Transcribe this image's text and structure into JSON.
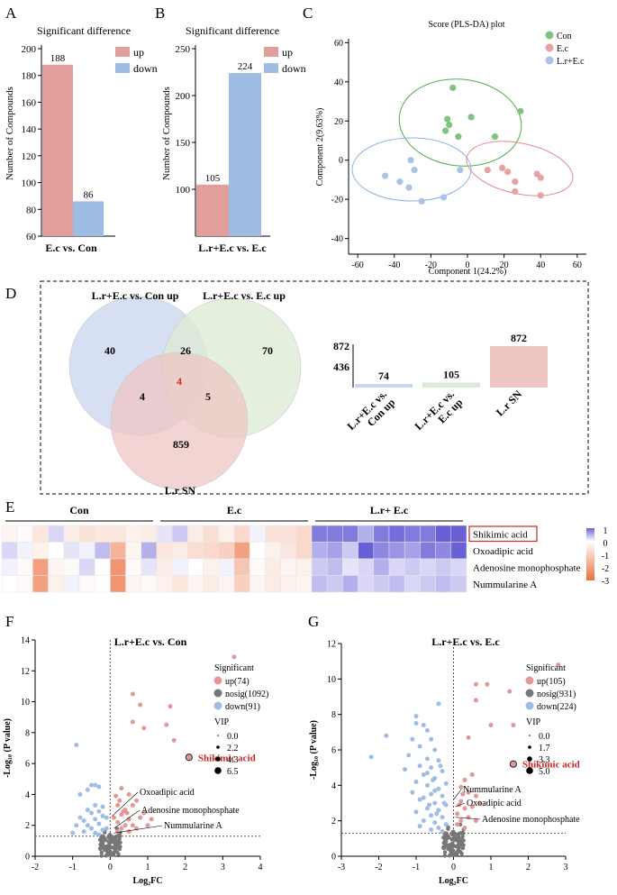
{
  "panels": {
    "A": {
      "label": "A",
      "title": "Significant difference",
      "ylabel": "Number of Compounds",
      "xlabel": "E.c vs. Con"
    },
    "B": {
      "label": "B",
      "title": "Significant difference",
      "ylabel": "Number of Compounds",
      "xlabel": "L.r+E.c vs. E.c"
    },
    "C": {
      "label": "C"
    },
    "D": {
      "label": "D"
    },
    "E": {
      "label": "E"
    },
    "F": {
      "label": "F"
    },
    "G": {
      "label": "G"
    }
  },
  "venn": {
    "sets": [
      "L.r+E.c vs. Con up",
      "L.r+E.c vs. E.c up",
      "L.r SN"
    ],
    "regions": {
      "a_only": "40",
      "ab": "26",
      "b_only": "70",
      "abc": "4",
      "ac": "4",
      "bc": "5",
      "c_only": "859"
    },
    "colors": [
      "#c9d6ef",
      "#dcebd3",
      "#eec5c3"
    ]
  },
  "heatmap": {
    "groups": [
      "Con",
      "E.c",
      "L.r+ E.c"
    ],
    "rows": [
      "Shikimic acid",
      "Oxoadipic acid",
      "Adenosine monophosphate",
      "Nummularine A"
    ],
    "highlight_row": "Shikimic acid",
    "scale_ticks": [
      "1",
      "0",
      "-1",
      "-2",
      "-3"
    ],
    "values": [
      [
        -0.2,
        -0.1,
        -0.5,
        0.3,
        -0.4,
        -0.6,
        -0.5,
        -0.5,
        -0.3,
        -0.4,
        0.2,
        0.4,
        -0.4,
        -0.7,
        -0.3,
        -0.8,
        0.1,
        -0.6,
        -0.6,
        -0.8,
        1.0,
        1.0,
        1.0,
        0.6,
        1.0,
        1.1,
        1.0,
        1.0,
        1.2,
        1.2
      ],
      [
        0.3,
        0.1,
        -0.3,
        0.0,
        0.2,
        0.1,
        0.5,
        -1.6,
        -0.2,
        0.6,
        -0.5,
        -0.4,
        -0.7,
        -0.8,
        -1.0,
        -2.0,
        0.0,
        -0.3,
        -0.5,
        -0.8,
        0.6,
        0.7,
        0.4,
        2.0,
        0.9,
        0.8,
        0.7,
        1.0,
        0.9,
        1.2
      ],
      [
        0.1,
        -0.1,
        -2.0,
        -0.2,
        -0.1,
        0.3,
        0.0,
        -2.2,
        -0.1,
        0.2,
        -0.4,
        0.1,
        0.0,
        -0.3,
        0.1,
        -1.2,
        -0.1,
        -0.4,
        -0.2,
        -0.3,
        0.4,
        0.5,
        0.2,
        0.3,
        0.6,
        0.3,
        0.4,
        0.3,
        0.4,
        0.3
      ],
      [
        0.0,
        -0.1,
        -2.0,
        -0.3,
        0.1,
        -0.1,
        0.0,
        -2.2,
        -0.2,
        -0.1,
        -0.3,
        -0.5,
        -0.2,
        -0.4,
        -0.2,
        -1.0,
        -0.2,
        -0.4,
        -0.3,
        -0.2,
        0.5,
        0.4,
        0.6,
        0.3,
        0.4,
        0.5,
        0.3,
        0.4,
        0.5,
        0.4
      ]
    ]
  },
  "chart_data": [
    {
      "id": "A",
      "type": "bar",
      "title": "Significant difference",
      "categories": [
        "E.c vs. Con"
      ],
      "series": [
        {
          "name": "up",
          "values": [
            188
          ],
          "color": "#e29e9a"
        },
        {
          "name": "down",
          "values": [
            86
          ],
          "color": "#9fbde3"
        }
      ],
      "xlabel": "E.c vs. Con",
      "ylabel": "Number of Compounds",
      "ylim": [
        60,
        200
      ],
      "yticks": [
        "60",
        "80",
        "100",
        "120",
        "140",
        "160",
        "180",
        "200"
      ],
      "data_labels": [
        "188",
        "86"
      ],
      "legend": [
        "up",
        "down"
      ]
    },
    {
      "id": "B",
      "type": "bar",
      "title": "Significant difference",
      "categories": [
        "L.r+E.c vs. E.c"
      ],
      "series": [
        {
          "name": "up",
          "values": [
            105
          ],
          "color": "#e29e9a"
        },
        {
          "name": "down",
          "values": [
            224
          ],
          "color": "#9fbde3"
        }
      ],
      "xlabel": "L.r+E.c vs. E.c",
      "ylabel": "Number of Compounds",
      "ylim": [
        50,
        250
      ],
      "yticks": [
        "100",
        "150",
        "200",
        "250"
      ],
      "data_labels": [
        "105",
        "224"
      ],
      "legend": [
        "up",
        "down"
      ]
    },
    {
      "id": "C",
      "type": "scatter",
      "title": "Score (PLS-DA) plot",
      "xlabel": "Component 1(24.2%)",
      "ylabel": "Component 2(9.63%)",
      "xlim": [
        -65,
        65
      ],
      "ylim": [
        -48,
        62
      ],
      "xticks": [
        "-60",
        "-40",
        "-20",
        "0",
        "20",
        "40",
        "60"
      ],
      "yticks": [
        "-40",
        "-20",
        "0",
        "20",
        "40",
        "60"
      ],
      "series": [
        {
          "name": "Con",
          "color": "#7fc47e",
          "points": [
            [
              -8,
              37
            ],
            [
              -11,
              21
            ],
            [
              -10,
              18
            ],
            [
              -12,
              15
            ],
            [
              -5,
              12
            ],
            [
              2,
              22
            ],
            [
              15,
              12
            ],
            [
              29,
              25
            ]
          ]
        },
        {
          "name": "E.c",
          "color": "#e6a3a3",
          "points": [
            [
              11,
              -5
            ],
            [
              19,
              -4
            ],
            [
              22,
              -6
            ],
            [
              26,
              -11
            ],
            [
              26,
              -16
            ],
            [
              38,
              -7
            ],
            [
              40,
              -9
            ],
            [
              40,
              -18
            ]
          ]
        },
        {
          "name": "L.r+E.c",
          "color": "#a9c4e6",
          "points": [
            [
              -45,
              -8
            ],
            [
              -37,
              -11
            ],
            [
              -32,
              -14
            ],
            [
              -31,
              0
            ],
            [
              -29,
              -5
            ],
            [
              -25,
              -21
            ],
            [
              -13,
              -19
            ],
            [
              -4,
              -5
            ]
          ]
        }
      ],
      "legend": [
        "Con",
        "E.c",
        "L.r+E.c"
      ]
    },
    {
      "id": "D-bar",
      "type": "bar",
      "categories": [
        "L.r+E.c vs. Con up",
        "L.r+E.c vs. E.c up",
        "L.r SN"
      ],
      "values": [
        74,
        105,
        872
      ],
      "ylim": [
        0,
        872
      ],
      "yticks": [
        "436",
        "872"
      ],
      "data_labels": [
        "74",
        "105",
        "872"
      ],
      "colors": [
        "#c9d6ef",
        "#dcebd3",
        "#eec5c3"
      ]
    },
    {
      "id": "F",
      "type": "scatter",
      "title": "L.r+E.c vs. Con",
      "xlabel": "Log2FC",
      "ylabel": "-Log10 (P value)",
      "xlim": [
        -2,
        4
      ],
      "ylim": [
        0,
        14
      ],
      "xticks": [
        "-2",
        "-1",
        "0",
        "1",
        "2",
        "3",
        "4"
      ],
      "yticks": [
        "0",
        "2",
        "4",
        "6",
        "8",
        "10",
        "12",
        "14"
      ],
      "legend_title": "Significant",
      "legend": [
        "up(74)",
        "nosig(1092)",
        "down(91)"
      ],
      "vip_title": "VIP",
      "vip_levels": [
        "0.0",
        "2.2",
        "4.3",
        "6.5"
      ],
      "highlight": {
        "label": "Shikimic acid",
        "x": 2.1,
        "y": 6.4
      },
      "annotations": [
        {
          "label": "Oxoadipic acid",
          "x": 0.05,
          "y": 2.6
        },
        {
          "label": "Adenosine monophosphate",
          "x": 0.1,
          "y": 1.8
        },
        {
          "label": "Nummularine A",
          "x": 0.1,
          "y": 1.5
        }
      ],
      "threshold_y": 1.3,
      "threshold_x": 0,
      "up_points": [
        [
          3.3,
          12.9
        ],
        [
          0.6,
          10.5
        ],
        [
          0.8,
          9.8
        ],
        [
          1.6,
          9.7
        ],
        [
          1.5,
          8.5
        ],
        [
          0.6,
          8.7
        ],
        [
          0.9,
          8.3
        ],
        [
          1.7,
          7.5
        ],
        [
          0.3,
          4.4
        ],
        [
          0.5,
          4.0
        ],
        [
          0.7,
          3.6
        ],
        [
          0.2,
          3.3
        ],
        [
          0.4,
          3.0
        ],
        [
          0.6,
          3.3
        ],
        [
          0.9,
          2.8
        ],
        [
          0.3,
          2.7
        ],
        [
          0.1,
          2.5
        ],
        [
          0.5,
          2.4
        ],
        [
          0.2,
          2.2
        ],
        [
          0.8,
          2.5
        ],
        [
          0.4,
          2.0
        ],
        [
          0.6,
          2.0
        ],
        [
          1.1,
          2.4
        ],
        [
          0.3,
          1.8
        ],
        [
          0.2,
          1.6
        ],
        [
          0.5,
          1.6
        ],
        [
          0.7,
          1.8
        ],
        [
          0.15,
          3.9
        ],
        [
          0.25,
          3.6
        ],
        [
          0.35,
          2.9
        ],
        [
          1.0,
          2.0
        ],
        [
          0.45,
          2.8
        ]
      ],
      "down_points": [
        [
          -0.9,
          7.2
        ],
        [
          -0.5,
          4.6
        ],
        [
          -0.4,
          4.6
        ],
        [
          -0.6,
          4.3
        ],
        [
          -0.3,
          4.5
        ],
        [
          -0.8,
          4.0
        ],
        [
          -0.2,
          3.2
        ],
        [
          -0.4,
          3.3
        ],
        [
          -0.6,
          3.0
        ],
        [
          -0.5,
          2.8
        ],
        [
          -0.3,
          2.9
        ],
        [
          -0.8,
          2.5
        ],
        [
          -0.7,
          2.3
        ],
        [
          -0.2,
          2.6
        ],
        [
          -0.1,
          2.5
        ],
        [
          -0.4,
          2.4
        ],
        [
          -0.6,
          2.0
        ],
        [
          -0.9,
          2.0
        ],
        [
          -0.3,
          2.1
        ],
        [
          -0.5,
          1.8
        ],
        [
          -0.2,
          1.7
        ],
        [
          -1.0,
          1.5
        ],
        [
          -0.7,
          1.6
        ],
        [
          -0.4,
          1.5
        ],
        [
          -0.1,
          1.8
        ],
        [
          -0.3,
          1.4
        ]
      ],
      "nosig_count_drawn": 90
    },
    {
      "id": "G",
      "type": "scatter",
      "title": "L.r+E.c vs. E.c",
      "xlabel": "Log2FC",
      "ylabel": "-Log10 (P value)",
      "xlim": [
        -3,
        3
      ],
      "ylim": [
        0,
        12
      ],
      "xticks": [
        "-3",
        "-2",
        "-1",
        "0",
        "1",
        "2",
        "3"
      ],
      "yticks": [
        "0",
        "2",
        "4",
        "6",
        "8",
        "10",
        "12"
      ],
      "legend_title": "Significant",
      "legend": [
        "up(105)",
        "nosig(931)",
        "down(224)"
      ],
      "vip_title": "VIP",
      "vip_levels": [
        "0.0",
        "1.7",
        "3.3",
        "5.0"
      ],
      "highlight": {
        "label": "Shikimic acid",
        "x": 1.6,
        "y": 5.2
      },
      "annotations": [
        {
          "label": "Nummularine A",
          "x": 0.0,
          "y": 3.2
        },
        {
          "label": "Oxoadipic acid",
          "x": 0.05,
          "y": 2.8
        },
        {
          "label": "Adenosine monophosphate",
          "x": 0.05,
          "y": 2.2
        }
      ],
      "threshold_y": 1.3,
      "threshold_x": 0,
      "up_points": [
        [
          2.8,
          10.8
        ],
        [
          0.6,
          9.7
        ],
        [
          0.9,
          9.7
        ],
        [
          1.5,
          9.3
        ],
        [
          0.6,
          8.8
        ],
        [
          1.0,
          7.4
        ],
        [
          1.6,
          7.4
        ],
        [
          0.4,
          6.7
        ],
        [
          0.3,
          4.3
        ],
        [
          0.5,
          4.6
        ],
        [
          0.2,
          3.9
        ],
        [
          0.4,
          3.6
        ],
        [
          0.6,
          3.4
        ],
        [
          0.2,
          3.1
        ],
        [
          0.3,
          2.7
        ],
        [
          0.1,
          2.4
        ],
        [
          0.5,
          2.8
        ],
        [
          0.7,
          3.0
        ],
        [
          0.2,
          2.0
        ],
        [
          0.4,
          2.2
        ],
        [
          0.1,
          1.8
        ],
        [
          0.3,
          1.6
        ],
        [
          0.6,
          2.0
        ],
        [
          0.15,
          2.9
        ],
        [
          0.25,
          3.5
        ]
      ],
      "down_points": [
        [
          -0.4,
          8.6
        ],
        [
          -2.2,
          5.6
        ],
        [
          -1.8,
          6.8
        ],
        [
          -1.0,
          7.9
        ],
        [
          -1.0,
          7.5
        ],
        [
          -0.8,
          7.4
        ],
        [
          -0.7,
          7.1
        ],
        [
          -1.1,
          6.6
        ],
        [
          -0.6,
          6.6
        ],
        [
          -0.9,
          6.2
        ],
        [
          -0.5,
          6.0
        ],
        [
          -1.2,
          5.7
        ],
        [
          -0.7,
          5.5
        ],
        [
          -0.4,
          5.4
        ],
        [
          -0.9,
          5.1
        ],
        [
          -0.6,
          5.0
        ],
        [
          -1.3,
          4.9
        ],
        [
          -0.3,
          4.8
        ],
        [
          -0.8,
          4.6
        ],
        [
          -0.5,
          4.4
        ],
        [
          -1.0,
          4.2
        ],
        [
          -0.2,
          4.1
        ],
        [
          -0.7,
          4.0
        ],
        [
          -0.4,
          3.8
        ],
        [
          -1.1,
          3.6
        ],
        [
          -0.6,
          3.5
        ],
        [
          -0.3,
          3.4
        ],
        [
          -0.9,
          3.2
        ],
        [
          -0.5,
          3.0
        ],
        [
          -0.2,
          2.9
        ],
        [
          -0.7,
          2.7
        ],
        [
          -0.4,
          2.6
        ],
        [
          -1.0,
          2.5
        ],
        [
          -0.6,
          2.3
        ],
        [
          -0.3,
          2.2
        ],
        [
          -0.8,
          2.0
        ],
        [
          -0.5,
          1.9
        ],
        [
          -0.2,
          1.8
        ],
        [
          -0.9,
          1.7
        ],
        [
          -0.4,
          1.6
        ],
        [
          -0.6,
          1.5
        ],
        [
          -0.3,
          1.4
        ],
        [
          -0.7,
          4.7
        ],
        [
          -0.5,
          3.7
        ],
        [
          -0.8,
          3.3
        ],
        [
          -0.35,
          5.1
        ],
        [
          -0.55,
          4.3
        ],
        [
          -0.25,
          3.0
        ],
        [
          -0.45,
          2.4
        ],
        [
          -0.65,
          2.9
        ]
      ],
      "nosig_count_drawn": 90
    }
  ]
}
